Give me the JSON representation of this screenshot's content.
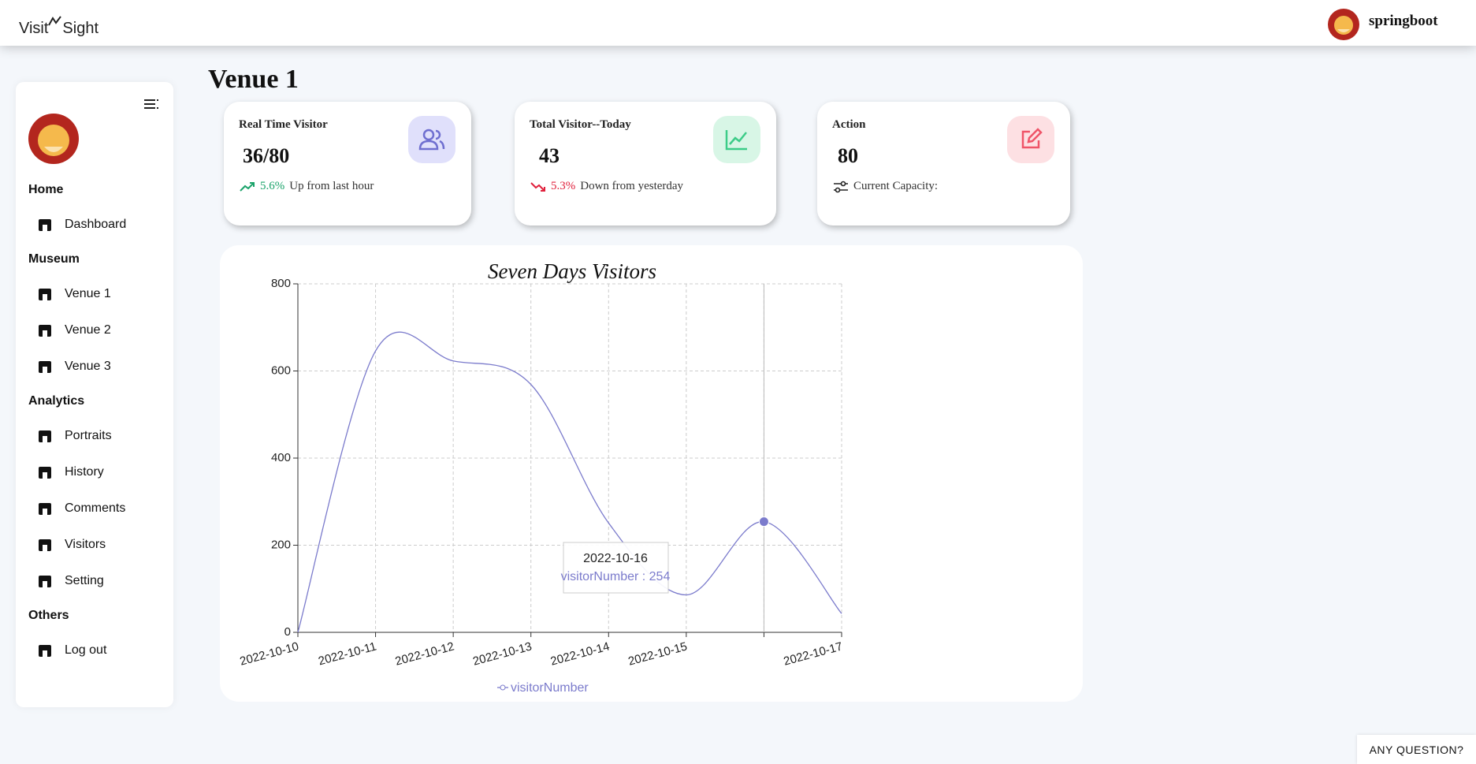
{
  "header": {
    "brand_left": "Visit",
    "brand_right": "Sight",
    "user": "springboot"
  },
  "sidebar": [
    {
      "title": "Home",
      "items": [
        "Dashboard"
      ]
    },
    {
      "title": "Museum",
      "items": [
        "Venue 1",
        "Venue 2",
        "Venue 3"
      ]
    },
    {
      "title": "Analytics",
      "items": [
        "Portraits",
        "History",
        "Comments",
        "Visitors",
        "Setting"
      ]
    },
    {
      "title": "Others",
      "items": [
        "Log out"
      ]
    }
  ],
  "page_title": "Venue 1",
  "cards": [
    {
      "title": "Real Time Visitor",
      "value": "36/80",
      "change": "5.6%",
      "note": "Up from last hour"
    },
    {
      "title": "Total Visitor--Today",
      "value": "43",
      "change": "5.3%",
      "note": "Down from yesterday"
    },
    {
      "title": "Action",
      "value": "80",
      "note": "Current Capacity:"
    }
  ],
  "chart_data": {
    "type": "line",
    "title": "Seven Days Visitors",
    "categories": [
      "2022-10-10",
      "2022-10-11",
      "2022-10-12",
      "2022-10-13",
      "2022-10-14",
      "2022-10-15",
      null,
      "2022-10-17"
    ],
    "series": [
      {
        "name": "visitorNumber",
        "color": "#7b7bcc",
        "values": [
          0,
          646,
          623,
          569,
          251,
          86,
          254,
          43
        ]
      }
    ],
    "ylim": [
      0,
      800
    ],
    "yticks": [
      0,
      200,
      400,
      600,
      800
    ],
    "grid": true,
    "tooltip": {
      "category": "2022-10-16"
    }
  },
  "help_button": "ANY QUESTION?"
}
